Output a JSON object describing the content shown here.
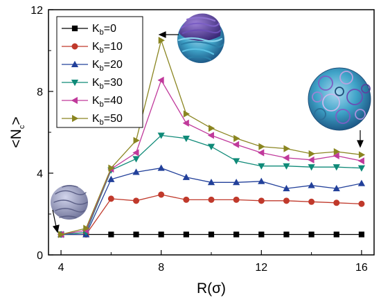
{
  "chart_data": {
    "type": "line",
    "xlabel": "R(σ)",
    "ylabel": "<N_c>",
    "xlim": [
      3.5,
      16.5
    ],
    "ylim": [
      0,
      12
    ],
    "x_ticks": [
      4,
      8,
      12,
      16
    ],
    "y_ticks": [
      0,
      4,
      8,
      12
    ],
    "x_tick_labels": [
      "4",
      "8",
      "12",
      "16"
    ],
    "y_tick_labels": [
      "0",
      "4",
      "8",
      "12"
    ],
    "grid": false,
    "legend_position": "top-left",
    "legend_prefix": "K",
    "legend_subscript": "b",
    "x": [
      4,
      5,
      6,
      7,
      8,
      9,
      10,
      11,
      12,
      13,
      14,
      15,
      16
    ],
    "series": [
      {
        "name": "=0",
        "color": "#000000",
        "marker": "square",
        "values": [
          1.0,
          1.0,
          1.0,
          1.0,
          1.0,
          1.0,
          1.0,
          1.0,
          1.0,
          1.0,
          1.0,
          1.0,
          1.0
        ]
      },
      {
        "name": "=10",
        "color": "#c0392b",
        "marker": "circle",
        "values": [
          1.0,
          1.0,
          2.75,
          2.65,
          2.95,
          2.7,
          2.7,
          2.7,
          2.65,
          2.65,
          2.6,
          2.55,
          2.5
        ]
      },
      {
        "name": "=20",
        "color": "#22409a",
        "marker": "triangle-up",
        "values": [
          1.0,
          1.0,
          3.7,
          4.05,
          4.25,
          3.8,
          3.55,
          3.55,
          3.6,
          3.25,
          3.4,
          3.25,
          3.5
        ]
      },
      {
        "name": "=30",
        "color": "#0f8a78",
        "marker": "triangle-down",
        "values": [
          1.0,
          1.1,
          4.15,
          4.7,
          5.85,
          5.7,
          5.3,
          4.6,
          4.35,
          4.35,
          4.3,
          4.3,
          4.25
        ]
      },
      {
        "name": "=40",
        "color": "#c0399b",
        "marker": "triangle-left",
        "values": [
          1.0,
          1.2,
          4.2,
          5.0,
          8.55,
          6.45,
          5.85,
          5.4,
          5.0,
          4.75,
          4.65,
          4.85,
          4.6
        ]
      },
      {
        "name": "=50",
        "color": "#8a8520",
        "marker": "triangle-right",
        "values": [
          1.0,
          1.3,
          4.25,
          5.6,
          10.5,
          6.9,
          6.2,
          5.7,
          5.3,
          5.2,
          4.95,
          5.05,
          4.9
        ]
      }
    ]
  },
  "colors": {
    "inset_purple": "#5b3d9c",
    "inset_cyan": "#3fa3c8",
    "inset_gray": "#8a8fb2"
  }
}
